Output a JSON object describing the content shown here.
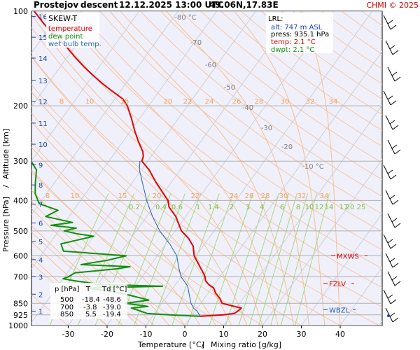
{
  "header": {
    "station": "Prostejov",
    "mode": "descent",
    "datetime": "12.12.2025 13:00 UTC",
    "coords": "49.06N,17.83E",
    "copyright": "CHMI © 2025"
  },
  "legend": {
    "title": "SKEW-T",
    "items": [
      {
        "label": "temperature",
        "color": "#e00000"
      },
      {
        "label": "dew point",
        "color": "#109010"
      },
      {
        "label": "wet bulb temp.",
        "color": "#2060c0"
      }
    ]
  },
  "lrl": {
    "title": "LRL:",
    "rows": [
      {
        "text": "alt: 747 m ASL",
        "color": "#1a3fb0"
      },
      {
        "text": "press: 935.1 hPa",
        "color": "#000000"
      },
      {
        "text": "temp: 2.1 °C",
        "color": "#e00000"
      },
      {
        "text": "dwpt: 2.1 °C",
        "color": "#109010"
      }
    ]
  },
  "levels": [
    {
      "label": "MXWS",
      "pressure": 600,
      "color": "#e00000"
    },
    {
      "label": "FZLV",
      "pressure": 735,
      "color": "#e00000"
    },
    {
      "label": "WBZL",
      "pressure": 890,
      "color": "#2060c0"
    }
  ],
  "table": {
    "headers": [
      "p [hPa]",
      "T",
      "Td [°C]"
    ],
    "rows": [
      [
        "500",
        "-18.4",
        "-48.6"
      ],
      [
        "700",
        "-3.8",
        "-39.0"
      ],
      [
        "850",
        "5.5",
        "-19.4"
      ]
    ]
  },
  "chart_data": {
    "type": "line",
    "title": "Prostejov descent 12.12.2025 13:00 UTC 49.06N,17.83E",
    "xlabel": "Temperature [°C]",
    "xlabel_secondary": "Mixing ratio [g/kg]",
    "ylabel": "Pressure [hPa]",
    "ylabel_secondary": "Altitude [km]",
    "xlim": [
      -35,
      45
    ],
    "ylim": [
      1000,
      100
    ],
    "y_scale": "log",
    "x_ticks": [
      -30,
      -20,
      -10,
      0,
      10,
      20,
      30,
      40
    ],
    "y_ticks": [
      100,
      200,
      300,
      400,
      500,
      600,
      700,
      850,
      925,
      1000
    ],
    "altitude_ticks_km": [
      1,
      2,
      3,
      4,
      5,
      6,
      7,
      8,
      9,
      10,
      11,
      12,
      13,
      14,
      15,
      16
    ],
    "dry_adiabat_labels": [
      "-80 °C",
      "-70",
      "-60",
      "-50",
      "-40",
      "-30",
      "-20",
      "-10 °C"
    ],
    "mixing_ratio_labels": [
      "0.2",
      "0.4",
      "0.6",
      "1",
      "1.4",
      "2",
      "3",
      "4",
      "6",
      "8",
      "10",
      "12",
      "14",
      "17",
      "20",
      "25"
    ],
    "moist_adiabat_labels": [
      "8",
      "10",
      "15",
      "20",
      "22",
      "24",
      "26",
      "28",
      "30",
      "32",
      "34"
    ],
    "grid": true,
    "series": [
      {
        "name": "temperature",
        "color": "#e00000",
        "points": [
          [
            935,
            2.1
          ],
          [
            930,
            5
          ],
          [
            925,
            8
          ],
          [
            915,
            10.5
          ],
          [
            900,
            11
          ],
          [
            880,
            11.3
          ],
          [
            850,
            5.5
          ],
          [
            820,
            4
          ],
          [
            790,
            2
          ],
          [
            760,
            0.5
          ],
          [
            740,
            -1.5
          ],
          [
            720,
            -3
          ],
          [
            700,
            -3.8
          ],
          [
            680,
            -5
          ],
          [
            650,
            -7
          ],
          [
            600,
            -10.5
          ],
          [
            560,
            -12.5
          ],
          [
            530,
            -15
          ],
          [
            500,
            -18.4
          ],
          [
            480,
            -20
          ],
          [
            450,
            -22.5
          ],
          [
            420,
            -26
          ],
          [
            400,
            -27.5
          ],
          [
            380,
            -30
          ],
          [
            350,
            -34
          ],
          [
            320,
            -38
          ],
          [
            300,
            -41.5
          ],
          [
            290,
            -42
          ],
          [
            280,
            -43
          ],
          [
            260,
            -46
          ],
          [
            240,
            -49
          ],
          [
            220,
            -52
          ],
          [
            200,
            -55.5
          ],
          [
            190,
            -58
          ],
          [
            180,
            -62
          ],
          [
            170,
            -66
          ],
          [
            160,
            -70
          ],
          [
            150,
            -74
          ],
          [
            140,
            -78
          ],
          [
            130,
            -82
          ],
          [
            120,
            -87
          ],
          [
            110,
            -92
          ],
          [
            100,
            -97
          ]
        ]
      },
      {
        "name": "dew point",
        "color": "#109010",
        "points": [
          [
            935,
            2.1
          ],
          [
            930,
            -2
          ],
          [
            925,
            -6
          ],
          [
            915,
            -12
          ],
          [
            900,
            -14
          ],
          [
            880,
            -17
          ],
          [
            870,
            -13
          ],
          [
            860,
            -16
          ],
          [
            850,
            -19.4
          ],
          [
            830,
            -14
          ],
          [
            800,
            -20
          ],
          [
            780,
            -25
          ],
          [
            760,
            -32
          ],
          [
            750,
            -13
          ],
          [
            740,
            -30
          ],
          [
            730,
            -33
          ],
          [
            720,
            -37
          ],
          [
            710,
            -40
          ],
          [
            700,
            -39
          ],
          [
            680,
            -38
          ],
          [
            660,
            -28
          ],
          [
            650,
            -25
          ],
          [
            640,
            -38
          ],
          [
            620,
            -32
          ],
          [
            600,
            -28
          ],
          [
            580,
            -45
          ],
          [
            550,
            -47
          ],
          [
            520,
            -40
          ],
          [
            510,
            -45
          ],
          [
            500,
            -48.6
          ],
          [
            490,
            -46
          ],
          [
            480,
            -53
          ],
          [
            470,
            -48
          ],
          [
            450,
            -56
          ],
          [
            430,
            -54
          ],
          [
            410,
            -60
          ],
          [
            400,
            -61
          ],
          [
            380,
            -63
          ],
          [
            350,
            -65
          ],
          [
            320,
            -67
          ],
          [
            300,
            -70
          ],
          [
            280,
            -73
          ],
          [
            260,
            -75
          ],
          [
            240,
            -78
          ],
          [
            220,
            -82
          ],
          [
            200,
            -85
          ],
          [
            180,
            -90
          ],
          [
            160,
            -94
          ],
          [
            140,
            -98
          ],
          [
            120,
            -102
          ],
          [
            100,
            -107
          ]
        ]
      },
      {
        "name": "wet bulb temp.",
        "color": "#2060c0",
        "points": [
          [
            935,
            2.1
          ],
          [
            925,
            1.8
          ],
          [
            900,
            0.5
          ],
          [
            880,
            -1
          ],
          [
            850,
            -2.5
          ],
          [
            800,
            -4.5
          ],
          [
            750,
            -6.5
          ],
          [
            700,
            -10
          ],
          [
            650,
            -12.5
          ],
          [
            600,
            -15
          ],
          [
            550,
            -19
          ],
          [
            500,
            -24
          ],
          [
            450,
            -28.5
          ],
          [
            400,
            -33
          ],
          [
            350,
            -37.5
          ],
          [
            320,
            -40.5
          ],
          [
            300,
            -42
          ]
        ]
      }
    ]
  }
}
